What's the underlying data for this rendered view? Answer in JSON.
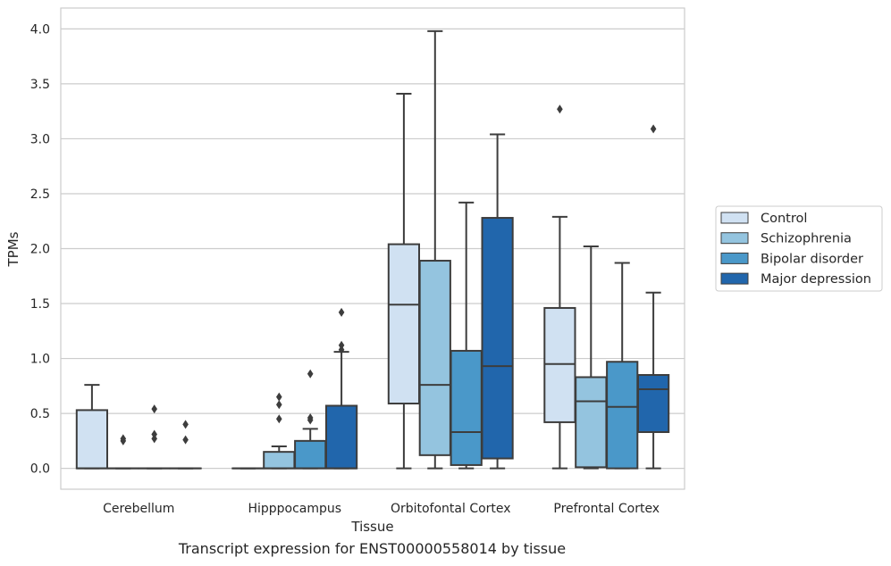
{
  "chart_data": {
    "type": "box",
    "ylabel": "TPMs",
    "xlabel": "Tissue",
    "ylim": [
      -0.19,
      4.19
    ],
    "yticks": [
      "0.0",
      "0.5",
      "1.0",
      "1.5",
      "2.0",
      "2.5",
      "3.0",
      "3.5",
      "4.0"
    ],
    "grid": "horizontal",
    "legend_position": "right",
    "categories": [
      "Cerebellum",
      "Hipppocampus",
      "Orbitofontal Cortex",
      "Prefrontal Cortex"
    ],
    "series": [
      {
        "name": "Control",
        "color": "#d0e1f2",
        "boxes": [
          {
            "min": 0,
            "q1": 0,
            "median": 0,
            "q3": 0.53,
            "max": 0.76,
            "outliers": []
          },
          {
            "min": 0,
            "q1": 0,
            "median": 0,
            "q3": 0,
            "max": 0,
            "outliers": []
          },
          {
            "min": 0,
            "q1": 0.59,
            "median": 1.49,
            "q3": 2.04,
            "max": 3.41,
            "outliers": []
          },
          {
            "min": 0,
            "q1": 0.42,
            "median": 0.95,
            "q3": 1.46,
            "max": 2.29,
            "outliers": [
              3.27
            ]
          }
        ]
      },
      {
        "name": "Schizophrenia",
        "color": "#94c4df",
        "boxes": [
          {
            "min": 0,
            "q1": 0,
            "median": 0,
            "q3": 0,
            "max": 0,
            "outliers": [
              0.25,
              0.27
            ]
          },
          {
            "min": 0,
            "q1": 0,
            "median": 0,
            "q3": 0.15,
            "max": 0.2,
            "outliers": [
              0.45,
              0.58,
              0.65
            ]
          },
          {
            "min": 0,
            "q1": 0.12,
            "median": 0.76,
            "q3": 1.89,
            "max": 3.98,
            "outliers": []
          },
          {
            "min": 0,
            "q1": 0.01,
            "median": 0.61,
            "q3": 0.83,
            "max": 2.02,
            "outliers": []
          }
        ]
      },
      {
        "name": "Bipolar disorder",
        "color": "#4a98c9",
        "boxes": [
          {
            "min": 0,
            "q1": 0,
            "median": 0,
            "q3": 0,
            "max": 0,
            "outliers": [
              0.27,
              0.31,
              0.54
            ]
          },
          {
            "min": 0,
            "q1": 0,
            "median": 0,
            "q3": 0.25,
            "max": 0.36,
            "outliers": [
              0.44,
              0.46,
              0.86
            ]
          },
          {
            "min": 0,
            "q1": 0.03,
            "median": 0.33,
            "q3": 1.07,
            "max": 2.42,
            "outliers": []
          },
          {
            "min": 0,
            "q1": 0,
            "median": 0.56,
            "q3": 0.97,
            "max": 1.87,
            "outliers": []
          }
        ]
      },
      {
        "name": "Major depression",
        "color": "#2166ac",
        "boxes": [
          {
            "min": 0,
            "q1": 0,
            "median": 0,
            "q3": 0,
            "max": 0,
            "outliers": [
              0.26,
              0.4
            ]
          },
          {
            "min": 0,
            "q1": 0,
            "median": 0,
            "q3": 0.57,
            "max": 1.06,
            "outliers": [
              1.08,
              1.12,
              1.42
            ]
          },
          {
            "min": 0,
            "q1": 0.09,
            "median": 0.93,
            "q3": 2.28,
            "max": 3.04,
            "outliers": []
          },
          {
            "min": 0,
            "q1": 0.33,
            "median": 0.72,
            "q3": 0.85,
            "max": 1.6,
            "outliers": [
              3.09
            ]
          }
        ]
      }
    ]
  },
  "caption": "Transcript expression for ENST00000558014 by tissue"
}
